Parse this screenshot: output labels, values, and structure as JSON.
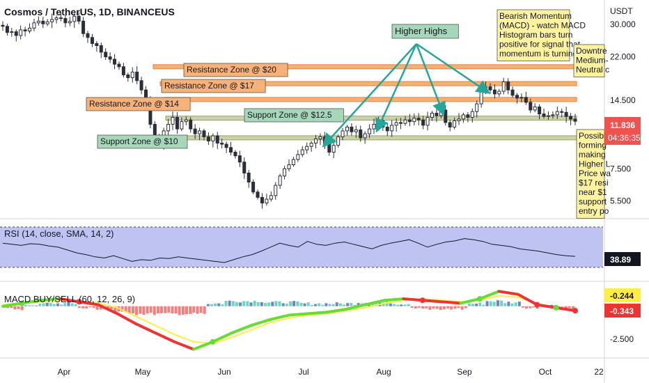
{
  "header": {
    "title": "Cosmos / TetherUS, 1D, BINANCEUS"
  },
  "colors": {
    "up": "#26a69a",
    "down": "#ef5350",
    "price_candle": "#2a2e39",
    "zone_fill": "#f5a962",
    "zone_stroke": "#e8732a",
    "support_fill": "#c8cda0",
    "support_stroke": "#8f9a5a",
    "label_orange_bg": "#f7b27a",
    "label_green_bg": "#a7d7b9",
    "note_bg": "#fff3a0",
    "arrow": "#26a69a",
    "rsi_fill": "#b3b8f0",
    "macd_green": "#66dd33",
    "macd_red": "#ee3333",
    "signal_yellow": "#ffee44",
    "price_badge": "#ef5350"
  },
  "annotations": {
    "higher_highs": "Higher Highs",
    "bearish_note": [
      "Bearish Momentum",
      "(MACD) - watch MACD",
      "Histogram bars turn",
      "positive for signal that",
      "momentum is turning"
    ],
    "downtrend_note": [
      "Downtre",
      "Medium-",
      "Neutral c"
    ],
    "possible_note": [
      "Possible",
      "forming",
      "making",
      "Higher L",
      "Price wa",
      "$17 resi",
      "near $1",
      "support",
      "entry po"
    ],
    "zones": [
      {
        "label": "Resistance Zone @ $20",
        "price": 20.0
      },
      {
        "label": "Resistance Zone @ $17",
        "price": 17.0
      },
      {
        "label": "Resistance Zone @ $14",
        "price": 14.6
      },
      {
        "label": "Support Zone @ $12.5",
        "price": 12.2
      },
      {
        "label": "Support Zone @ $10",
        "price": 10.1
      }
    ]
  },
  "chart_data": [
    {
      "type": "candlestick",
      "title": "Cosmos / TetherUS, 1D, BINANCEUS",
      "y_axis_label": "USDT",
      "y_scale": "log",
      "ylim": [
        4.9,
        36
      ],
      "y_ticks": [
        "30.000",
        "22.000",
        "14.500",
        "11.836",
        "7.500",
        "5.500"
      ],
      "y_tick_values": [
        30.0,
        22.0,
        14.5,
        11.836,
        7.5,
        5.5
      ],
      "x_ticks": [
        "Apr",
        "May",
        "Jun",
        "Jul",
        "Aug",
        "Sep",
        "Oct",
        "22"
      ],
      "last_price": "11.836",
      "countdown": "04:36:35",
      "close_series_approx": [
        29.5,
        27.8,
        28.0,
        27.0,
        28.5,
        28.2,
        29.0,
        30.5,
        31.0,
        30.2,
        30.8,
        31.5,
        32.0,
        31.8,
        30.5,
        30.9,
        32.5,
        31.0,
        27.5,
        26.5,
        25.0,
        24.5,
        23.0,
        22.0,
        21.5,
        20.5,
        20.0,
        18.5,
        18.0,
        19.0,
        17.5,
        16.0,
        14.5,
        11.5,
        10.0,
        9.5,
        10.8,
        11.5,
        12.3,
        11.0,
        11.8,
        12.0,
        11.0,
        10.5,
        10.8,
        10.2,
        9.8,
        10.3,
        9.6,
        9.5,
        9.2,
        8.8,
        8.5,
        8.0,
        7.2,
        6.6,
        6.0,
        5.7,
        5.4,
        5.6,
        5.8,
        6.4,
        7.0,
        7.5,
        7.8,
        8.2,
        8.6,
        9.0,
        9.3,
        9.6,
        10.0,
        10.2,
        9.5,
        8.8,
        9.4,
        10.2,
        10.8,
        11.2,
        10.7,
        10.9,
        10.1,
        10.5,
        11.0,
        11.5,
        11.9,
        11.2,
        10.8,
        11.4,
        11.7,
        11.6,
        12.0,
        11.8,
        12.2,
        12.0,
        11.4,
        12.3,
        12.8,
        12.5,
        13.2,
        11.7,
        11.2,
        11.9,
        12.1,
        12.6,
        12.3,
        13.0,
        14.0,
        15.8,
        16.5,
        16.0,
        15.4,
        15.8,
        17.3,
        16.0,
        15.2,
        14.8,
        14.9,
        14.2,
        13.2,
        13.6,
        12.7,
        12.4,
        12.5,
        12.6,
        13.0,
        12.9,
        12.4,
        12.1,
        11.836
      ]
    },
    {
      "type": "line",
      "title": "RSI (14, close, SMA, 14, 2)",
      "value_badge": "38.89",
      "ylim": [
        0,
        100
      ],
      "values_approx": [
        62,
        60,
        58,
        61,
        60,
        57,
        55,
        50,
        45,
        42,
        38,
        36,
        40,
        35,
        30,
        33,
        32,
        36,
        35,
        38,
        36,
        34,
        32,
        30,
        28,
        33,
        38,
        42,
        48,
        55,
        62,
        58,
        55,
        65,
        60,
        58,
        62,
        64,
        60,
        56,
        52,
        58,
        62,
        65,
        68,
        62,
        55,
        60,
        64,
        66,
        70,
        68,
        65,
        60,
        58,
        56,
        52,
        50,
        48,
        45,
        42,
        40,
        38.89
      ]
    },
    {
      "type": "line",
      "title": "MACD BUY/SELL (60, 12, 26, 9)",
      "value_badges": [
        "-0.244",
        "-0.343"
      ],
      "y_ticks": [
        "-2.500"
      ],
      "series": [
        {
          "values_approx": [
            0.0,
            0.2,
            0.4,
            0.5,
            0.3,
            0.1,
            -0.5,
            -1.2,
            -1.8,
            -2.4,
            -2.9,
            -2.4,
            -1.8,
            -1.3,
            -0.9,
            -0.6,
            -0.5,
            -0.4,
            -0.2,
            0.1,
            0.4,
            0.5,
            0.4,
            0.3,
            0.2,
            0.5,
            1.0,
            0.8,
            0.1,
            -0.1,
            -0.3
          ]
        },
        {
          "values_approx": [
            0.1,
            0.2,
            0.3,
            0.4,
            0.35,
            0.2,
            -0.1,
            -0.7,
            -1.3,
            -1.9,
            -2.4,
            -2.5,
            -2.1,
            -1.6,
            -1.1,
            -0.8,
            -0.6,
            -0.5,
            -0.3,
            -0.1,
            0.2,
            0.4,
            0.5,
            0.4,
            0.3,
            0.4,
            0.7,
            0.6,
            0.2,
            -0.1,
            -0.25
          ]
        }
      ]
    }
  ]
}
